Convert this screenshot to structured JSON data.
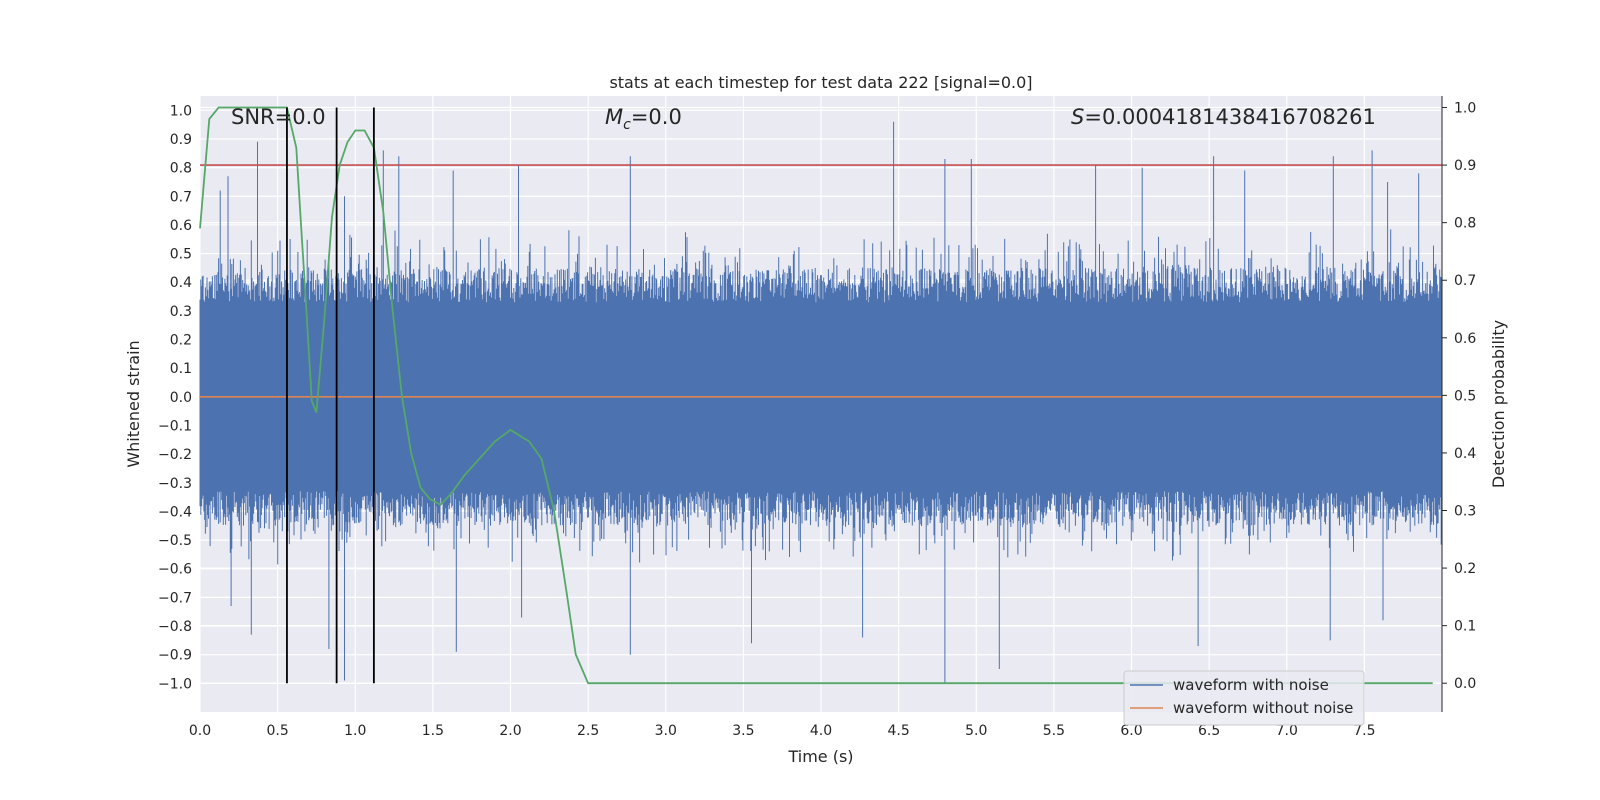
{
  "chart_data": {
    "type": "line",
    "title": "stats at each timestep for test data 222 [signal=0.0]",
    "xlabel": "Time (s)",
    "ylabel_left": "Whitened strain",
    "ylabel_right": "Detection probability",
    "xlim": [
      0.0,
      8.0
    ],
    "ylim_left": [
      -1.1,
      1.05
    ],
    "ylim_right": [
      -0.05,
      1.02
    ],
    "x_ticks": [
      "0.0",
      "0.5",
      "1.0",
      "1.5",
      "2.0",
      "2.5",
      "3.0",
      "3.5",
      "4.0",
      "4.5",
      "5.0",
      "5.5",
      "6.0",
      "6.5",
      "7.0",
      "7.5"
    ],
    "y_left_ticks": [
      "1.0",
      "0.9",
      "0.8",
      "0.7",
      "0.6",
      "0.5",
      "0.4",
      "0.3",
      "0.2",
      "0.1",
      "0.0",
      "−0.1",
      "−0.2",
      "−0.3",
      "−0.4",
      "−0.5",
      "−0.6",
      "−0.7",
      "−0.8",
      "−0.9",
      "−1.0"
    ],
    "y_right_ticks": [
      "1.0",
      "0.9",
      "0.8",
      "0.7",
      "0.6",
      "0.5",
      "0.4",
      "0.3",
      "0.2",
      "0.1",
      "0.0"
    ],
    "grid": true,
    "legend_position": "lower-right",
    "annotations": {
      "snr": "SNR=0.0",
      "mc_symbol": "M",
      "mc_sub": "c",
      "mc_value": "=0.0",
      "s_symbol": "S",
      "s_value": "=0.0004181438416708261"
    },
    "series": [
      {
        "name": "waveform with noise",
        "color": "#4c72b0",
        "axis": "left",
        "description_stats": {
          "typical_peak": 0.5,
          "max": 0.96,
          "min": -1.0
        },
        "spikes_up": [
          [
            0.37,
            0.89
          ],
          [
            0.13,
            0.72
          ],
          [
            0.18,
            0.77
          ],
          [
            0.93,
            0.7
          ],
          [
            1.18,
            0.86
          ],
          [
            1.28,
            0.84
          ],
          [
            1.63,
            0.79
          ],
          [
            2.05,
            0.81
          ],
          [
            2.77,
            0.84
          ],
          [
            4.47,
            0.96
          ],
          [
            4.8,
            0.83
          ],
          [
            4.97,
            0.83
          ],
          [
            5.77,
            0.81
          ],
          [
            6.07,
            0.8
          ],
          [
            6.53,
            0.84
          ],
          [
            6.73,
            0.79
          ],
          [
            7.3,
            0.84
          ],
          [
            7.55,
            0.86
          ],
          [
            7.85,
            0.78
          ],
          [
            7.65,
            0.75
          ]
        ],
        "spikes_down": [
          [
            0.2,
            -0.73
          ],
          [
            0.33,
            -0.83
          ],
          [
            0.83,
            -0.88
          ],
          [
            0.93,
            -0.99
          ],
          [
            1.65,
            -0.89
          ],
          [
            2.77,
            -0.9
          ],
          [
            2.07,
            -0.77
          ],
          [
            3.55,
            -0.86
          ],
          [
            4.27,
            -0.84
          ],
          [
            4.8,
            -1.0
          ],
          [
            5.15,
            -0.95
          ],
          [
            6.43,
            -0.87
          ],
          [
            7.28,
            -0.85
          ],
          [
            7.62,
            -0.78
          ]
        ]
      },
      {
        "name": "waveform without noise",
        "color": "#dd8452",
        "axis": "left",
        "x": [
          0.0,
          8.0
        ],
        "y": [
          0.0,
          0.0
        ]
      },
      {
        "name": "",
        "color": "#55a868",
        "axis": "right",
        "x": [
          0.0,
          0.06,
          0.12,
          0.2,
          0.3,
          0.4,
          0.5,
          0.56,
          0.62,
          0.65,
          0.68,
          0.72,
          0.75,
          0.8,
          0.85,
          0.9,
          0.95,
          1.0,
          1.06,
          1.12,
          1.18,
          1.24,
          1.3,
          1.36,
          1.42,
          1.48,
          1.55,
          1.62,
          1.7,
          1.8,
          1.9,
          1.95,
          2.0,
          2.06,
          2.12,
          2.2,
          2.28,
          2.36,
          2.42,
          2.5,
          2.6,
          3.0,
          4.0,
          5.0,
          6.0,
          7.0,
          7.94
        ],
        "y": [
          0.79,
          0.98,
          1.0,
          1.0,
          1.0,
          1.0,
          1.0,
          1.0,
          0.93,
          0.8,
          0.67,
          0.49,
          0.47,
          0.63,
          0.81,
          0.9,
          0.94,
          0.96,
          0.96,
          0.93,
          0.82,
          0.65,
          0.5,
          0.4,
          0.34,
          0.32,
          0.31,
          0.33,
          0.36,
          0.39,
          0.42,
          0.43,
          0.44,
          0.43,
          0.42,
          0.39,
          0.3,
          0.16,
          0.05,
          0.0,
          0.0,
          0.0,
          0.0,
          0.0,
          0.0,
          0.0,
          0.0
        ]
      },
      {
        "name": "",
        "color": "#c44e52",
        "axis": "right",
        "type": "threshold",
        "y": 0.9
      }
    ],
    "vlines": [
      0.56,
      0.88,
      1.12
    ]
  }
}
